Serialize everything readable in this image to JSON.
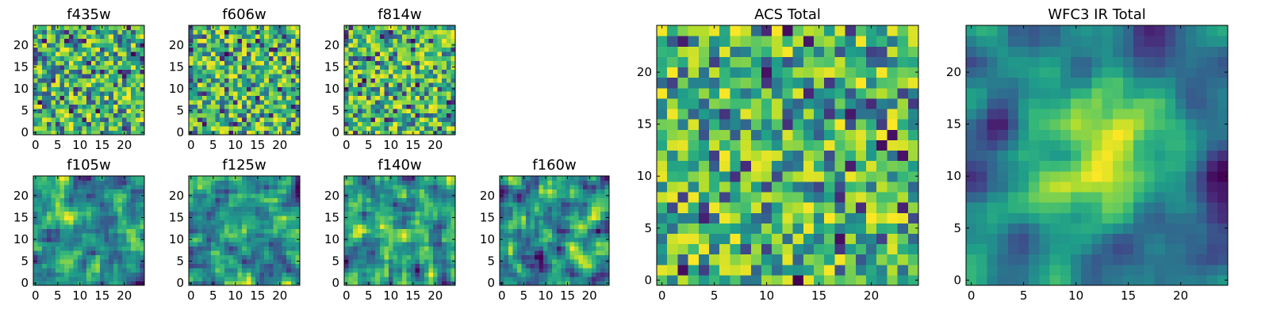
{
  "chart_data": [
    {
      "type": "heatmap",
      "title": "f435w",
      "xticks": [
        "0",
        "5",
        "10",
        "15",
        "20"
      ],
      "yticks": [
        "0",
        "5",
        "10",
        "15",
        "20"
      ],
      "grid_size": 25,
      "xlim": [
        0,
        24
      ],
      "ylim": [
        0,
        24
      ],
      "colormap": "viridis",
      "pattern": "noise",
      "seed": 11
    },
    {
      "type": "heatmap",
      "title": "f606w",
      "xticks": [
        "0",
        "5",
        "10",
        "15",
        "20"
      ],
      "yticks": [
        "0",
        "5",
        "10",
        "15",
        "20"
      ],
      "grid_size": 25,
      "xlim": [
        0,
        24
      ],
      "ylim": [
        0,
        24
      ],
      "colormap": "viridis",
      "pattern": "noise",
      "seed": 23
    },
    {
      "type": "heatmap",
      "title": "f814w",
      "xticks": [
        "0",
        "5",
        "10",
        "15",
        "20"
      ],
      "yticks": [
        "0",
        "5",
        "10",
        "15",
        "20"
      ],
      "grid_size": 25,
      "xlim": [
        0,
        24
      ],
      "ylim": [
        0,
        24
      ],
      "colormap": "viridis",
      "pattern": "noise",
      "seed": 37
    },
    {
      "type": "heatmap",
      "title": "f105w",
      "xticks": [
        "0",
        "5",
        "10",
        "15",
        "20"
      ],
      "yticks": [
        "0",
        "5",
        "10",
        "15",
        "20"
      ],
      "grid_size": 25,
      "xlim": [
        0,
        24
      ],
      "ylim": [
        0,
        24
      ],
      "colormap": "viridis",
      "pattern": "smooth",
      "seed": 41
    },
    {
      "type": "heatmap",
      "title": "f125w",
      "xticks": [
        "0",
        "5",
        "10",
        "15",
        "20"
      ],
      "yticks": [
        "0",
        "5",
        "10",
        "15",
        "20"
      ],
      "grid_size": 25,
      "xlim": [
        0,
        24
      ],
      "ylim": [
        0,
        24
      ],
      "colormap": "viridis",
      "pattern": "smooth",
      "seed": 53
    },
    {
      "type": "heatmap",
      "title": "f140w",
      "xticks": [
        "0",
        "5",
        "10",
        "15",
        "20"
      ],
      "yticks": [
        "0",
        "5",
        "10",
        "15",
        "20"
      ],
      "grid_size": 25,
      "xlim": [
        0,
        24
      ],
      "ylim": [
        0,
        24
      ],
      "colormap": "viridis",
      "pattern": "smooth",
      "seed": 67
    },
    {
      "type": "heatmap",
      "title": "f160w",
      "xticks": [
        "0",
        "5",
        "10",
        "15",
        "20"
      ],
      "yticks": [
        "0",
        "5",
        "10",
        "15",
        "20"
      ],
      "grid_size": 25,
      "xlim": [
        0,
        24
      ],
      "ylim": [
        0,
        24
      ],
      "colormap": "viridis",
      "pattern": "smooth",
      "seed": 79
    },
    {
      "type": "heatmap",
      "title": "ACS Total",
      "xticks": [
        "0",
        "5",
        "10",
        "15",
        "20"
      ],
      "yticks": [
        "0",
        "5",
        "10",
        "15",
        "20"
      ],
      "grid_size": 25,
      "xlim": [
        0,
        24
      ],
      "ylim": [
        0,
        24
      ],
      "colormap": "viridis",
      "pattern": "noise",
      "seed": 97
    },
    {
      "type": "heatmap",
      "title": "WFC3 IR Total",
      "xticks": [
        "0",
        "5",
        "10",
        "15",
        "20"
      ],
      "yticks": [
        "0",
        "5",
        "10",
        "15",
        "20"
      ],
      "grid_size": 25,
      "xlim": [
        0,
        24
      ],
      "ylim": [
        0,
        24
      ],
      "colormap": "viridis",
      "pattern": "blob",
      "seed": 113
    }
  ]
}
